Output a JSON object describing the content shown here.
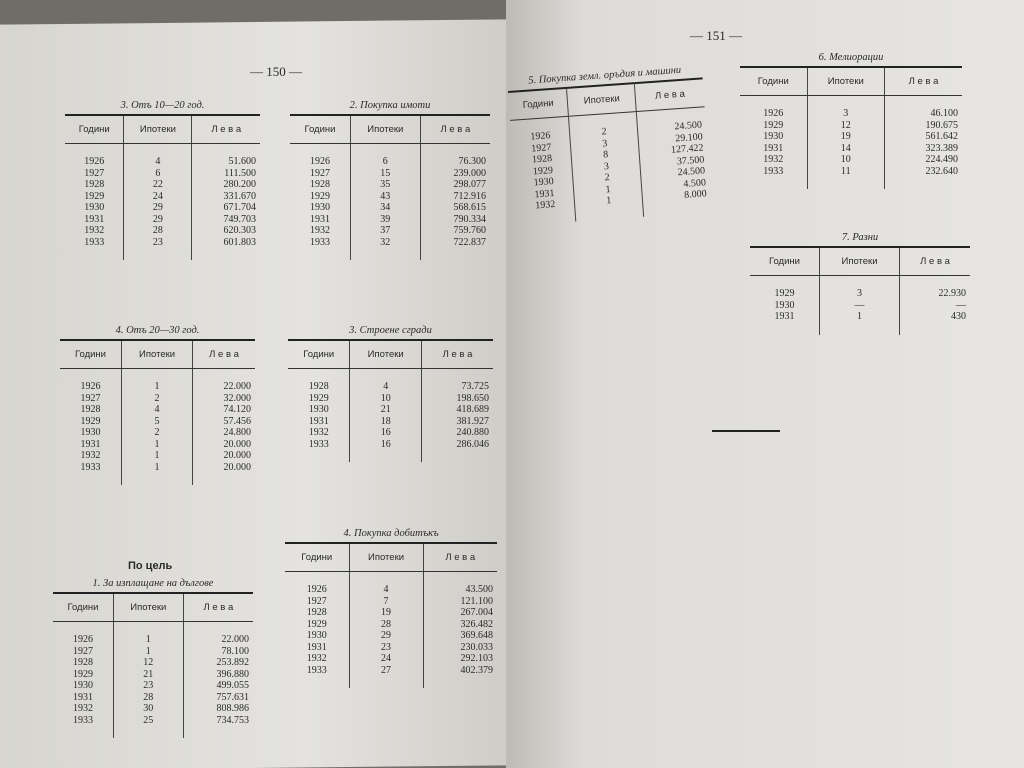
{
  "page_numbers": [
    "— 150 —",
    "— 151 —"
  ],
  "heading": "По цель",
  "tables": [
    {
      "title": "3. Отъ 10—20 год.",
      "columns": [
        "Години",
        "Ипотеки",
        "Л е в а"
      ],
      "rows": [
        [
          "1926",
          "4",
          "51.600"
        ],
        [
          "1927",
          "6",
          "111.500"
        ],
        [
          "1928",
          "22",
          "280.200"
        ],
        [
          "1929",
          "24",
          "331.670"
        ],
        [
          "1930",
          "29",
          "671.704"
        ],
        [
          "1931",
          "29",
          "749.703"
        ],
        [
          "1932",
          "28",
          "620.303"
        ],
        [
          "1933",
          "23",
          "601.803"
        ]
      ]
    },
    {
      "title": "4. Отъ 20—30 год.",
      "columns": [
        "Години",
        "Ипотеки",
        "Л е в а"
      ],
      "rows": [
        [
          "1926",
          "1",
          "22.000"
        ],
        [
          "1927",
          "2",
          "32.000"
        ],
        [
          "1928",
          "4",
          "74.120"
        ],
        [
          "1929",
          "5",
          "57.456"
        ],
        [
          "1930",
          "2",
          "24.800"
        ],
        [
          "1931",
          "1",
          "20.000"
        ],
        [
          "1932",
          "1",
          "20.000"
        ],
        [
          "1933",
          "1",
          "20.000"
        ]
      ]
    },
    {
      "title": "1. За изплащане на дългове",
      "columns": [
        "Години",
        "Ипотеки",
        "Л е в а"
      ],
      "rows": [
        [
          "1926",
          "1",
          "22.000"
        ],
        [
          "1927",
          "1",
          "78.100"
        ],
        [
          "1928",
          "12",
          "253.892"
        ],
        [
          "1929",
          "21",
          "396.880"
        ],
        [
          "1930",
          "23",
          "499.055"
        ],
        [
          "1931",
          "28",
          "757.631"
        ],
        [
          "1932",
          "30",
          "808.986"
        ],
        [
          "1933",
          "25",
          "734.753"
        ]
      ]
    },
    {
      "title": "2. Покупка имоти",
      "columns": [
        "Години",
        "Ипотеки",
        "Л е в а"
      ],
      "rows": [
        [
          "1926",
          "6",
          "76.300"
        ],
        [
          "1927",
          "15",
          "239.000"
        ],
        [
          "1928",
          "35",
          "298.077"
        ],
        [
          "1929",
          "43",
          "712.916"
        ],
        [
          "1930",
          "34",
          "568.615"
        ],
        [
          "1931",
          "39",
          "790.334"
        ],
        [
          "1932",
          "37",
          "759.760"
        ],
        [
          "1933",
          "32",
          "722.837"
        ]
      ]
    },
    {
      "title": "3. Строене сгради",
      "columns": [
        "Години",
        "Ипотеки",
        "Л е в а"
      ],
      "rows": [
        [
          "1928",
          "4",
          "73.725"
        ],
        [
          "1929",
          "10",
          "198.650"
        ],
        [
          "1930",
          "21",
          "418.689"
        ],
        [
          "1931",
          "18",
          "381.927"
        ],
        [
          "1932",
          "16",
          "240.880"
        ],
        [
          "1933",
          "16",
          "286.046"
        ]
      ]
    },
    {
      "title": "4. Покупка добитъкъ",
      "columns": [
        "Години",
        "Ипотеки",
        "Л е в а"
      ],
      "rows": [
        [
          "1926",
          "4",
          "43.500"
        ],
        [
          "1927",
          "7",
          "121.100"
        ],
        [
          "1928",
          "19",
          "267.004"
        ],
        [
          "1929",
          "28",
          "326.482"
        ],
        [
          "1930",
          "29",
          "369.648"
        ],
        [
          "1931",
          "23",
          "230.033"
        ],
        [
          "1932",
          "24",
          "292.103"
        ],
        [
          "1933",
          "27",
          "402.379"
        ]
      ]
    },
    {
      "title": "5. Покупка земл. оръдия и машини",
      "columns": [
        "Години",
        "Ипотеки",
        "Л е в а"
      ],
      "rows": [
        [
          "1926",
          "2",
          "24.500"
        ],
        [
          "1927",
          "3",
          "29.100"
        ],
        [
          "1928",
          "8",
          "127.422"
        ],
        [
          "1929",
          "3",
          "37.500"
        ],
        [
          "1930",
          "2",
          "24.500"
        ],
        [
          "1931",
          "1",
          "4.500"
        ],
        [
          "1932",
          "1",
          "8.000"
        ]
      ]
    },
    {
      "title": "6. Мелиорации",
      "columns": [
        "Години",
        "Ипотеки",
        "Л е в а"
      ],
      "rows": [
        [
          "1926",
          "3",
          "46.100"
        ],
        [
          "1929",
          "12",
          "190.675"
        ],
        [
          "1930",
          "19",
          "561.642"
        ],
        [
          "1931",
          "14",
          "323.389"
        ],
        [
          "1932",
          "10",
          "224.490"
        ],
        [
          "1933",
          "11",
          "232.640"
        ]
      ]
    },
    {
      "title": "7. Разни",
      "columns": [
        "Години",
        "Ипотеки",
        "Л е в а"
      ],
      "rows": [
        [
          "1929",
          "3",
          "22.930"
        ],
        [
          "1930",
          "—",
          "—"
        ],
        [
          "1931",
          "1",
          "430"
        ]
      ]
    }
  ]
}
